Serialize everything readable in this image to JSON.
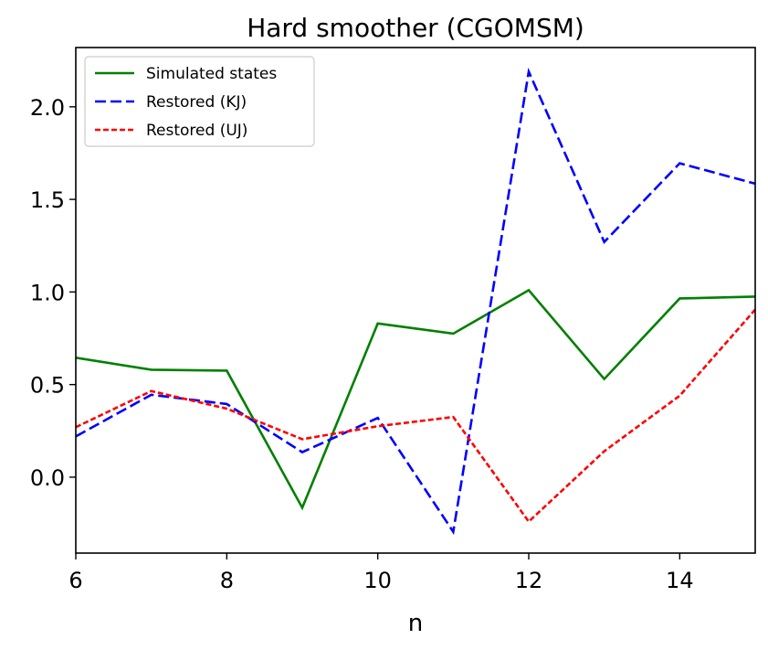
{
  "chart_data": {
    "type": "line",
    "title": "Hard smoother (CGOMSM)",
    "xlabel": "n",
    "ylabel": "",
    "xlim": [
      6,
      15
    ],
    "ylim": [
      -0.41,
      2.32
    ],
    "xticks": [
      6,
      8,
      10,
      12,
      14
    ],
    "yticks": [
      0.0,
      0.5,
      1.0,
      1.5,
      2.0
    ],
    "xtick_labels": [
      "6",
      "8",
      "10",
      "12",
      "14"
    ],
    "ytick_labels": [
      "0.0",
      "0.5",
      "1.0",
      "1.5",
      "2.0"
    ],
    "grid": false,
    "legend_position": "top-left",
    "x": [
      6,
      7,
      8,
      9,
      10,
      11,
      12,
      13,
      14,
      15
    ],
    "series": [
      {
        "name": "Simulated states",
        "color": "#008000",
        "style": "solid",
        "values": [
          0.645,
          0.58,
          0.575,
          -0.165,
          0.83,
          0.775,
          1.01,
          0.53,
          0.965,
          0.975
        ]
      },
      {
        "name": "Restored (KJ)",
        "color": "#0000ff",
        "style": "dashed",
        "values": [
          0.22,
          0.445,
          0.395,
          0.135,
          0.32,
          -0.295,
          2.19,
          1.27,
          1.695,
          1.585
        ]
      },
      {
        "name": "Restored (UJ)",
        "color": "#ff0000",
        "style": "dotted",
        "values": [
          0.27,
          0.465,
          0.37,
          0.205,
          0.275,
          0.325,
          -0.24,
          0.14,
          0.44,
          0.905
        ]
      }
    ]
  }
}
